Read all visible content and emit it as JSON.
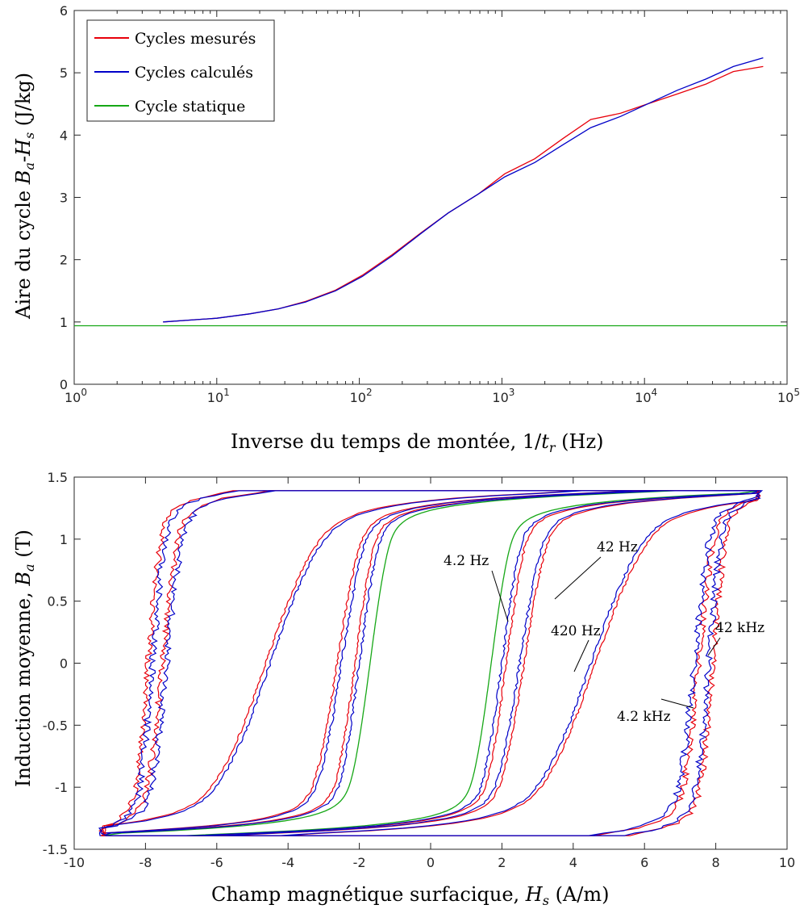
{
  "chart_data": [
    {
      "type": "line",
      "xscale": "log",
      "xlabel": "Inverse du temps de montée, 1/t_r (Hz)",
      "ylabel": "Aire du cycle B_a-H_s (J/kg)",
      "xlim": [
        1,
        100000
      ],
      "ylim": [
        0,
        6
      ],
      "xticks": [
        "10^0",
        "10^1",
        "10^2",
        "10^3",
        "10^4",
        "10^5"
      ],
      "yticks": [
        "0",
        "1",
        "2",
        "3",
        "4",
        "5",
        "6"
      ],
      "legend_position": "top-left",
      "series": [
        {
          "name": "Cycles mesurés",
          "color": "#e8000b",
          "x": [
            4.2,
            10,
            17,
            27,
            42,
            68,
            105,
            170,
            270,
            420,
            680,
            1050,
            1700,
            2700,
            4200,
            6800,
            10500,
            17000,
            27000,
            42000,
            68000
          ],
          "y": [
            1.0,
            1.06,
            1.13,
            1.21,
            1.33,
            1.51,
            1.75,
            2.08,
            2.43,
            2.75,
            3.05,
            3.38,
            3.62,
            3.95,
            4.25,
            4.35,
            4.5,
            4.66,
            4.82,
            5.02,
            5.1
          ]
        },
        {
          "name": "Cycles calculés",
          "color": "#0000c8",
          "x": [
            4.2,
            10,
            17,
            27,
            42,
            68,
            105,
            170,
            270,
            420,
            680,
            1050,
            1700,
            2700,
            4200,
            6800,
            10500,
            17000,
            27000,
            42000,
            68000
          ],
          "y": [
            1.0,
            1.06,
            1.13,
            1.21,
            1.32,
            1.5,
            1.73,
            2.06,
            2.42,
            2.75,
            3.05,
            3.33,
            3.56,
            3.85,
            4.12,
            4.3,
            4.5,
            4.72,
            4.9,
            5.1,
            5.24
          ]
        },
        {
          "name": "Cycle statique",
          "color": "#16a716",
          "x": [
            1,
            100000
          ],
          "y": [
            0.94,
            0.94
          ]
        }
      ]
    },
    {
      "type": "line",
      "xlabel": "Champ magnétique surfacique, H_s (A/m)",
      "ylabel": "Induction moyenne, B_a (T)",
      "xlim": [
        -10,
        10
      ],
      "ylim": [
        -1.5,
        1.5
      ],
      "xticks": [
        "-10",
        "-8",
        "-6",
        "-4",
        "-2",
        "0",
        "2",
        "4",
        "6",
        "8",
        "10"
      ],
      "yticks": [
        "-1.5",
        "-1",
        "-0.5",
        "0",
        "0.5",
        "1",
        "1.5"
      ],
      "colors": {
        "mesure": "#e8000b",
        "calcul": "#0000c8",
        "statique": "#16a716"
      },
      "loops": [
        {
          "label": "4.2 Hz",
          "coercive_field": 2.0,
          "bmax": 1.39,
          "hmax": 9.2
        },
        {
          "label": "42 Hz",
          "coercive_field": 2.5,
          "bmax": 1.39,
          "hmax": 9.2
        },
        {
          "label": "420 Hz",
          "coercive_field": 4.5,
          "bmax": 1.39,
          "hmax": 9.2
        },
        {
          "label": "4.2 kHz",
          "coercive_field": 7.4,
          "bmax": 1.39,
          "hmax": 9.2
        },
        {
          "label": "42 kHz",
          "coercive_field": 7.8,
          "bmax": 1.39,
          "hmax": 9.2
        }
      ],
      "static_loop": {
        "coercive_field": 1.7,
        "bmax": 1.39,
        "hmax": 9.2
      },
      "annotations": [
        "4.2 Hz",
        "42 Hz",
        "420 Hz",
        "4.2 kHz",
        "42 kHz"
      ]
    }
  ]
}
